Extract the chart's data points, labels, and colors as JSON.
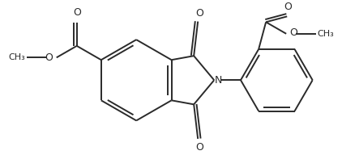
{
  "background_color": "#ffffff",
  "line_color": "#2a2a2a",
  "line_width": 1.4,
  "figsize": [
    4.22,
    1.92
  ],
  "dpi": 100,
  "xlim": [
    0,
    422
  ],
  "ylim": [
    0,
    192
  ]
}
